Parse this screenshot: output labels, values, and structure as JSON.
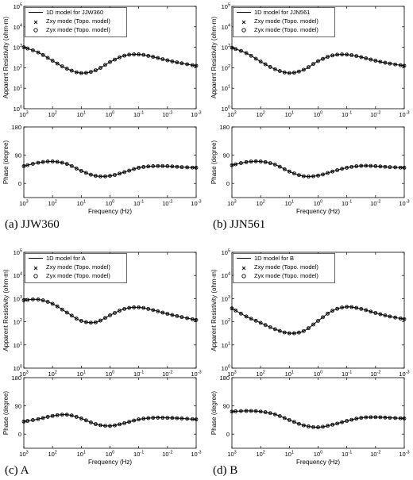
{
  "chart_data": [
    {
      "type": "line",
      "caption": "(a) JJW360",
      "legend": [
        "1D model for JJW360",
        "Zxy mode (Topo. model)",
        "Zyx mode (Topo. model)"
      ],
      "rho_ylabel": "Apparent Resistivity (ohm-m)",
      "phase_ylabel": "Phase (degree)",
      "xlabel": "Frequency (Hz)",
      "x_ticks": [
        "10^3",
        "10^2",
        "10^1",
        "10^0",
        "10^-1",
        "10^-2",
        "10^-3"
      ],
      "rho_ticks": [
        "10^0",
        "10^1",
        "10^2",
        "10^3",
        "10^4",
        "10^5"
      ],
      "phase_ticks": [
        "0",
        "90",
        "180"
      ],
      "x_scale": "log",
      "x_range": [
        1000,
        0.001
      ],
      "rho_range": [
        1,
        100000
      ],
      "phase_range": [
        -45,
        180
      ],
      "frequency": [
        1000,
        316,
        100,
        31.6,
        10,
        3.16,
        1,
        0.316,
        0.1,
        0.0316,
        0.01,
        0.00316,
        0.001
      ],
      "resistivity": [
        1000,
        560,
        220,
        90,
        55,
        75,
        190,
        390,
        450,
        340,
        230,
        165,
        125
      ],
      "phase": [
        55,
        66,
        70,
        62,
        40,
        24,
        24,
        36,
        50,
        55,
        55,
        52,
        50
      ]
    },
    {
      "type": "line",
      "caption": "(b) JJN561",
      "legend": [
        "1D model for JJN561",
        "Zxy mode (Topo. model)",
        "Zyx mode (Topo. model)"
      ],
      "rho_ylabel": "Apparent Resistivity (ohm-m)",
      "phase_ylabel": "Phase (degree)",
      "xlabel": "Frequency (Hz)",
      "x_ticks": [
        "10^3",
        "10^2",
        "10^1",
        "10^0",
        "10^-1",
        "10^-2",
        "10^-3"
      ],
      "rho_ticks": [
        "10^0",
        "10^1",
        "10^2",
        "10^3",
        "10^4",
        "10^5"
      ],
      "phase_ticks": [
        "0",
        "90",
        "180"
      ],
      "x_scale": "log",
      "x_range": [
        1000,
        0.001
      ],
      "rho_range": [
        1,
        100000
      ],
      "phase_range": [
        -45,
        180
      ],
      "frequency": [
        1000,
        316,
        100,
        31.6,
        10,
        3.16,
        1,
        0.316,
        0.1,
        0.0316,
        0.01,
        0.00316,
        0.001
      ],
      "resistivity": [
        950,
        520,
        200,
        85,
        55,
        80,
        210,
        400,
        440,
        330,
        220,
        160,
        125
      ],
      "phase": [
        58,
        68,
        70,
        60,
        38,
        23,
        25,
        38,
        50,
        56,
        55,
        52,
        50
      ]
    },
    {
      "type": "line",
      "caption": "(c) A",
      "legend": [
        "1D model for A",
        "Zxy mode (Topo. model)",
        "Zyx mode (Topo. model)"
      ],
      "rho_ylabel": "Apparent Resistivity (ohm-m)",
      "phase_ylabel": "Phase (degree)",
      "xlabel": "Frequency (Hz)",
      "x_ticks": [
        "10^3",
        "10^2",
        "10^1",
        "10^0",
        "10^-1",
        "10^-2",
        "10^-3"
      ],
      "rho_ticks": [
        "10^0",
        "10^1",
        "10^2",
        "10^3",
        "10^4",
        "10^5"
      ],
      "phase_ticks": [
        "0",
        "90",
        "180"
      ],
      "x_scale": "log",
      "x_range": [
        1000,
        0.001
      ],
      "rho_range": [
        1,
        100000
      ],
      "phase_range": [
        -45,
        180
      ],
      "frequency": [
        1000,
        316,
        100,
        31.6,
        10,
        3.16,
        1,
        0.316,
        0.1,
        0.0316,
        0.01,
        0.00316,
        0.001
      ],
      "resistivity": [
        850,
        920,
        600,
        250,
        110,
        95,
        190,
        360,
        420,
        320,
        220,
        160,
        120
      ],
      "phase": [
        40,
        48,
        58,
        62,
        50,
        32,
        26,
        35,
        47,
        52,
        52,
        50,
        47
      ]
    },
    {
      "type": "line",
      "caption": "(d) B",
      "legend": [
        "1D model for B",
        "Zxy mode (Topo. model)",
        "Zyx mode (Topo. model)"
      ],
      "rho_ylabel": "Apparent Resistivity (ohm-m)",
      "phase_ylabel": "Phase (degree)",
      "xlabel": "Frequency (Hz)",
      "x_ticks": [
        "10^3",
        "10^2",
        "10^1",
        "10^0",
        "10^-1",
        "10^-2",
        "10^-3"
      ],
      "rho_ticks": [
        "10^0",
        "10^1",
        "10^2",
        "10^3",
        "10^4",
        "10^5"
      ],
      "phase_ticks": [
        "0",
        "90",
        "180"
      ],
      "x_scale": "log",
      "x_range": [
        1000,
        0.001
      ],
      "rho_range": [
        1,
        100000
      ],
      "phase_range": [
        -45,
        180
      ],
      "frequency": [
        1000,
        316,
        100,
        31.6,
        10,
        3.16,
        1,
        0.316,
        0.1,
        0.0316,
        0.01,
        0.00316,
        0.001
      ],
      "resistivity": [
        380,
        170,
        90,
        48,
        32,
        40,
        110,
        300,
        440,
        360,
        240,
        170,
        130
      ],
      "phase": [
        72,
        74,
        72,
        63,
        45,
        28,
        22,
        30,
        42,
        52,
        54,
        52,
        50
      ]
    }
  ]
}
